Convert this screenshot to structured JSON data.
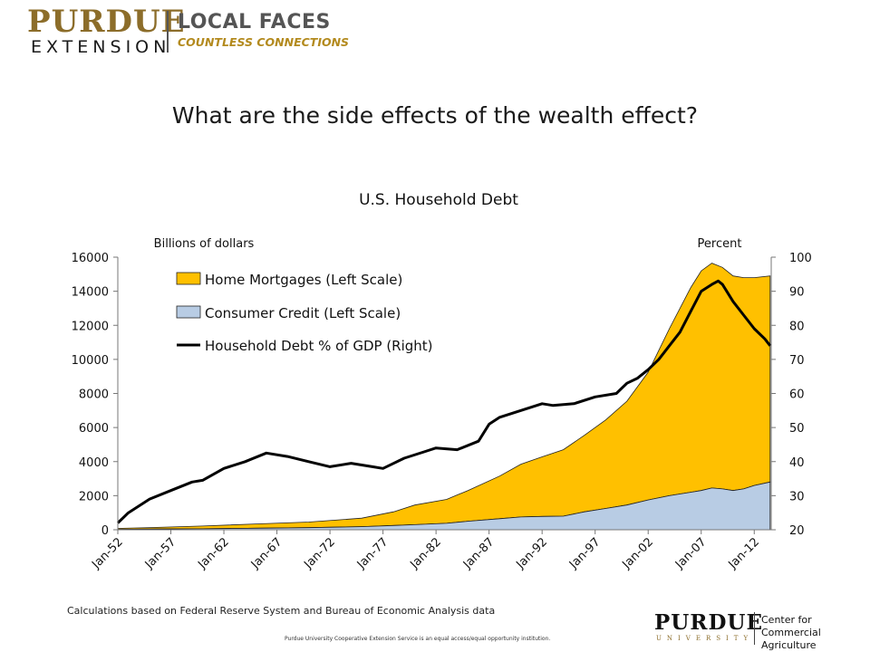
{
  "header": {
    "brand_primary": "PURDUE",
    "brand_secondary": "EXTENSION",
    "tagline_title": "LOCAL FACES",
    "tagline_sub": "COUNTLESS CONNECTIONS"
  },
  "slide": {
    "headline": "What are the side effects of the wealth effect?"
  },
  "footer": {
    "source_note": "Calculations based on Federal Reserve System and Bureau of Economic Analysis data",
    "disclaimer": "Purdue University Cooperative Extension Service is an equal access/equal opportunity institution.",
    "logo_name": "PURDUE",
    "logo_sub": "UNIVERSITY",
    "center_line1": "Center for",
    "center_line2": "Commercial Agriculture"
  },
  "colors": {
    "mortgage_fill": "#FFC000",
    "consumer_fill": "#B8CCE4",
    "debt_line": "#000000",
    "brand_gold": "#8C6D2A"
  },
  "chart_data": {
    "type": "area",
    "title": "U.S. Household Debt",
    "ylabel_left": "Billions of dollars",
    "ylabel_right": "Percent",
    "xlim": [
      1952,
      2013.6
    ],
    "ylim_left": [
      0,
      16000
    ],
    "ylim_right": [
      20,
      100
    ],
    "yticks_left": [
      "0",
      "2000",
      "4000",
      "6000",
      "8000",
      "10000",
      "12000",
      "14000",
      "16000"
    ],
    "yticks_right": [
      "20",
      "30",
      "40",
      "50",
      "60",
      "70",
      "80",
      "90",
      "100"
    ],
    "xticks": [
      {
        "year": 1952,
        "label": "Jan-52"
      },
      {
        "year": 1957,
        "label": "Jan-57"
      },
      {
        "year": 1962,
        "label": "Jan-62"
      },
      {
        "year": 1967,
        "label": "Jan-67"
      },
      {
        "year": 1972,
        "label": "Jan-72"
      },
      {
        "year": 1977,
        "label": "Jan-77"
      },
      {
        "year": 1982,
        "label": "Jan-82"
      },
      {
        "year": 1987,
        "label": "Jan-87"
      },
      {
        "year": 1992,
        "label": "Jan-92"
      },
      {
        "year": 1997,
        "label": "Jan-97"
      },
      {
        "year": 2002,
        "label": "Jan-02"
      },
      {
        "year": 2007,
        "label": "Jan-07"
      },
      {
        "year": 2012,
        "label": "Jan-12"
      }
    ],
    "legend": [
      "Home Mortgages (Left Scale)",
      "Consumer Credit (Left Scale)",
      "Household Debt % of GDP (Right)"
    ],
    "legend_position": "top-left",
    "grid": false,
    "series": [
      {
        "name": "Consumer Credit (Left Scale)",
        "axis": "left",
        "x": [
          1952,
          1955,
          1960,
          1965,
          1970,
          1975,
          1978,
          1980,
          1983,
          1985,
          1988,
          1990,
          1992,
          1994,
          1996,
          1998,
          2000,
          2002,
          2004,
          2006,
          2007,
          2008,
          2009,
          2010,
          2011,
          2012,
          2013.5
        ],
        "values": [
          20,
          40,
          60,
          90,
          120,
          180,
          250,
          300,
          380,
          500,
          650,
          750,
          780,
          800,
          1050,
          1250,
          1450,
          1750,
          2000,
          2200,
          2300,
          2450,
          2400,
          2300,
          2400,
          2600,
          2800
        ]
      },
      {
        "name": "Home Mortgages (Left Scale)",
        "axis": "left",
        "x": [
          1952,
          1955,
          1960,
          1965,
          1970,
          1975,
          1978,
          1980,
          1983,
          1985,
          1988,
          1990,
          1992,
          1994,
          1996,
          1998,
          2000,
          2002,
          2004,
          2006,
          2007,
          2008,
          2009,
          2010,
          2011,
          2012,
          2013.5
        ],
        "values": [
          60,
          90,
          160,
          250,
          330,
          500,
          800,
          1150,
          1400,
          1800,
          2500,
          3100,
          3500,
          3900,
          4500,
          5200,
          6100,
          7500,
          9800,
          12000,
          12900,
          13200,
          13000,
          12600,
          12400,
          12200,
          12100
        ]
      },
      {
        "name": "Household Debt % of GDP (Right)",
        "axis": "right",
        "x": [
          1952,
          1953,
          1955,
          1957,
          1959,
          1960,
          1962,
          1964,
          1966,
          1968,
          1970,
          1972,
          1974,
          1976,
          1977,
          1979,
          1981,
          1982,
          1984,
          1986,
          1987,
          1988,
          1990,
          1992,
          1993,
          1995,
          1997,
          1999,
          2000,
          2001,
          2002,
          2003,
          2004,
          2005,
          2006,
          2007,
          2008,
          2008.6,
          2009,
          2010,
          2011,
          2012,
          2013,
          2013.5
        ],
        "values": [
          22,
          25,
          29,
          31.5,
          34,
          34.5,
          38,
          40,
          42.5,
          41.5,
          40,
          38.5,
          39.5,
          38.5,
          38,
          41,
          43,
          44,
          43.5,
          46,
          51,
          53,
          55,
          57,
          56.5,
          57,
          59,
          60,
          63,
          64.5,
          67,
          70,
          74,
          78,
          84,
          90,
          92,
          93,
          92,
          87,
          83,
          79,
          76,
          74
        ]
      }
    ]
  }
}
